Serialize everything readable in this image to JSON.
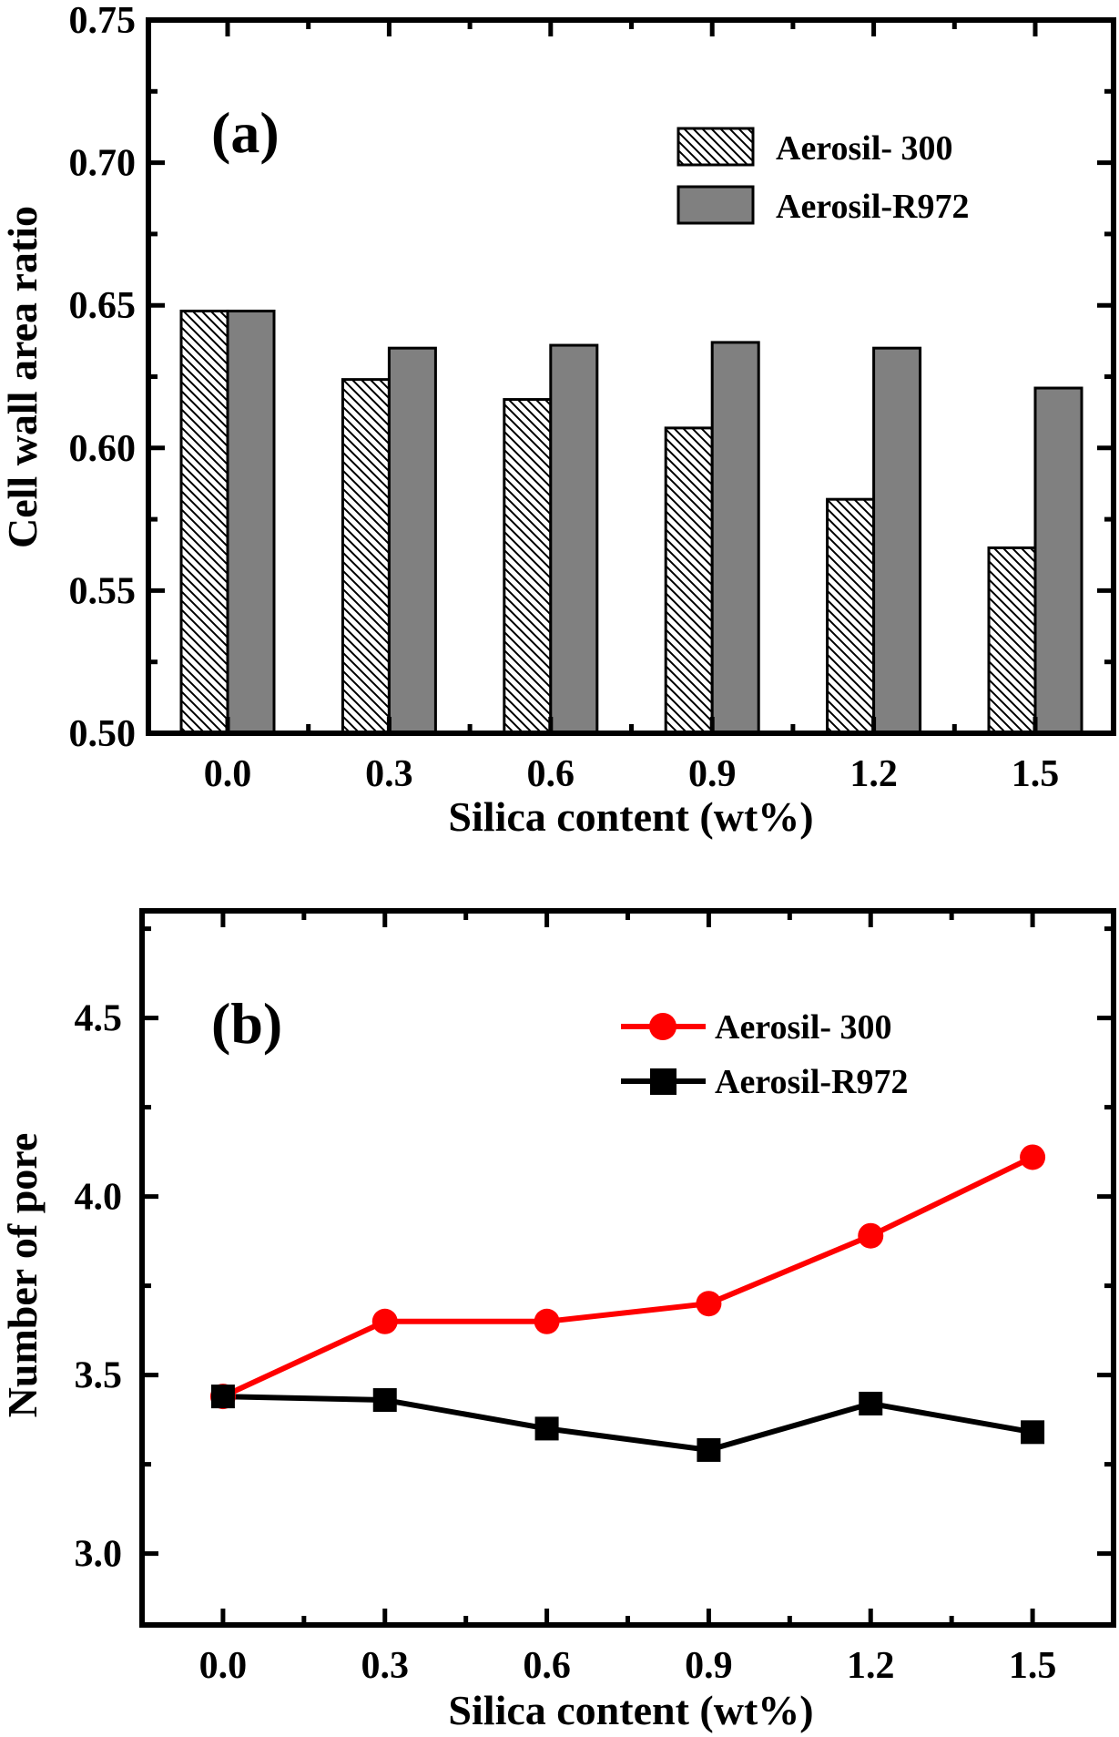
{
  "chart_data": [
    {
      "id": "a",
      "type": "bar",
      "panel_label": "(a)",
      "title": "",
      "xlabel": "Silica content (wt%)",
      "ylabel": "Cell wall area ratio",
      "categories": [
        "0.0",
        "0.3",
        "0.6",
        "0.9",
        "1.2",
        "1.5"
      ],
      "ylim": [
        0.5,
        0.75
      ],
      "yticks": [
        "0.50",
        "0.55",
        "0.60",
        "0.65",
        "0.70",
        "0.75"
      ],
      "ytick_values": [
        0.5,
        0.55,
        0.6,
        0.65,
        0.7,
        0.75
      ],
      "grid": false,
      "legend_position": "top-right",
      "series": [
        {
          "name": "Aerosil- 300",
          "fill": "hatched",
          "color": "#ffffff",
          "values": [
            0.648,
            0.624,
            0.617,
            0.607,
            0.582,
            0.565
          ]
        },
        {
          "name": "Aerosil-R972",
          "fill": "solid",
          "color": "#808080",
          "values": [
            0.648,
            0.635,
            0.636,
            0.637,
            0.635,
            0.621
          ]
        }
      ]
    },
    {
      "id": "b",
      "type": "line",
      "panel_label": "(b)",
      "title": "",
      "xlabel": "Silica content (wt%)",
      "ylabel": "Number of pore",
      "x": [
        0.0,
        0.3,
        0.6,
        0.9,
        1.2,
        1.5
      ],
      "xticks": [
        "0.0",
        "0.3",
        "0.6",
        "0.9",
        "1.2",
        "1.5"
      ],
      "xlim": [
        -0.15,
        1.65
      ],
      "ylim": [
        2.8,
        4.8
      ],
      "yticks": [
        "3.0",
        "3.5",
        "4.0",
        "4.5"
      ],
      "ytick_values": [
        3.0,
        3.5,
        4.0,
        4.5
      ],
      "grid": false,
      "legend_position": "top-right",
      "series": [
        {
          "name": "Aerosil- 300",
          "marker": "circle",
          "color": "#ff0000",
          "values": [
            3.44,
            3.65,
            3.65,
            3.7,
            3.89,
            4.11
          ]
        },
        {
          "name": "Aerosil-R972",
          "marker": "square",
          "color": "#000000",
          "values": [
            3.44,
            3.43,
            3.35,
            3.29,
            3.42,
            3.34
          ]
        }
      ]
    }
  ]
}
